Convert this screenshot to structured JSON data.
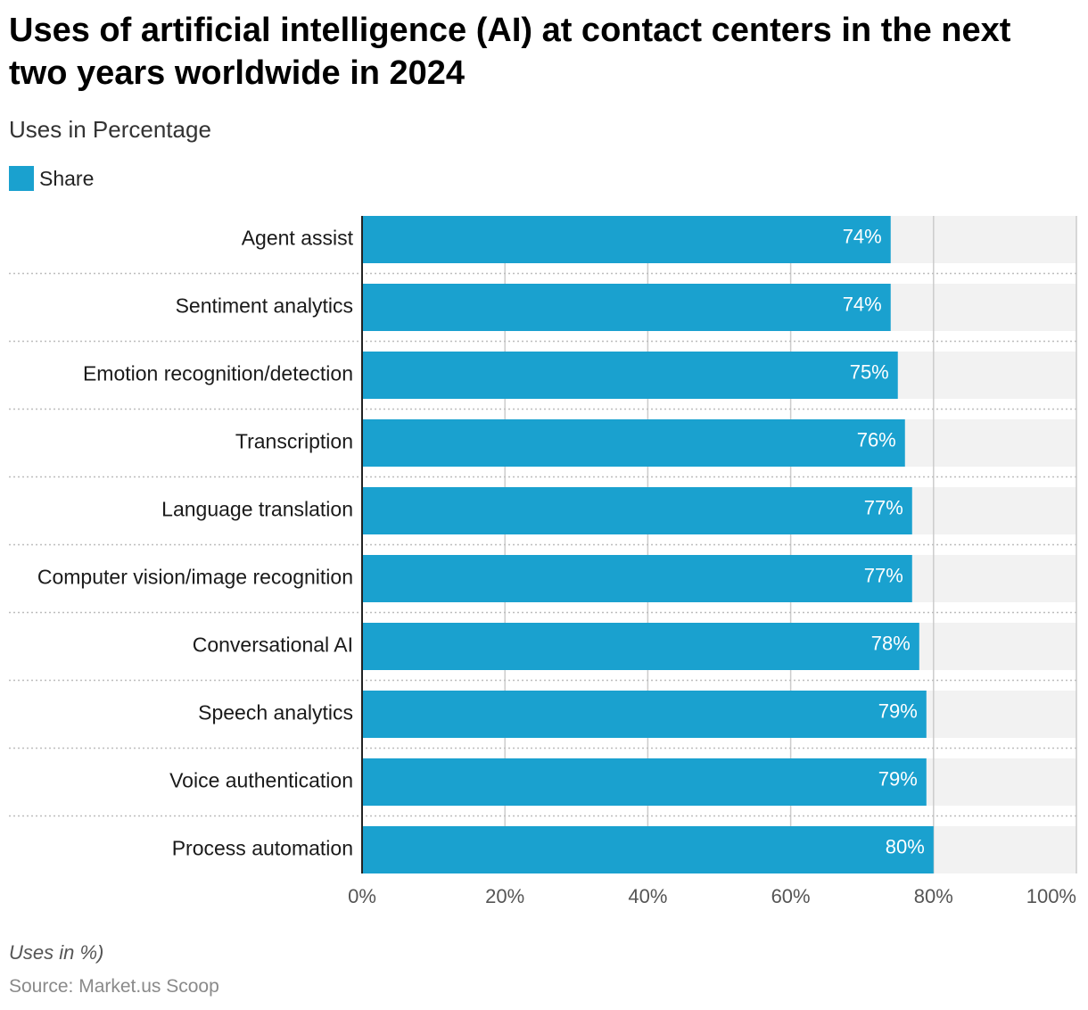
{
  "header": {
    "title": "Uses of artificial intelligence (AI) at contact centers in the next two years worldwide in 2024",
    "subtitle": "Uses in Percentage"
  },
  "legend": {
    "label": "Share",
    "color": "#1aa1cf"
  },
  "footer": {
    "note": "Uses in %)",
    "source": "Source: Market.us Scoop"
  },
  "colors": {
    "bar": "#1aa1cf",
    "track": "#f2f2f2",
    "grid": "#cccccc",
    "axis": "#222222"
  },
  "chart_data": {
    "type": "bar",
    "orientation": "horizontal",
    "categories": [
      "Agent assist",
      "Sentiment analytics",
      "Emotion recognition/detection",
      "Transcription",
      "Language translation",
      "Computer vision/image recognition",
      "Conversational AI",
      "Speech analytics",
      "Voice authentication",
      "Process automation"
    ],
    "series": [
      {
        "name": "Share",
        "values": [
          74,
          74,
          75,
          76,
          77,
          77,
          78,
          79,
          79,
          80
        ]
      }
    ],
    "data_labels": [
      "74%",
      "74%",
      "75%",
      "76%",
      "77%",
      "77%",
      "78%",
      "79%",
      "79%",
      "80%"
    ],
    "xlim": [
      0,
      100
    ],
    "xticks": [
      0,
      20,
      40,
      60,
      80,
      100
    ],
    "xtick_labels": [
      "0%",
      "20%",
      "40%",
      "60%",
      "80%",
      "100%"
    ],
    "grid": true
  }
}
